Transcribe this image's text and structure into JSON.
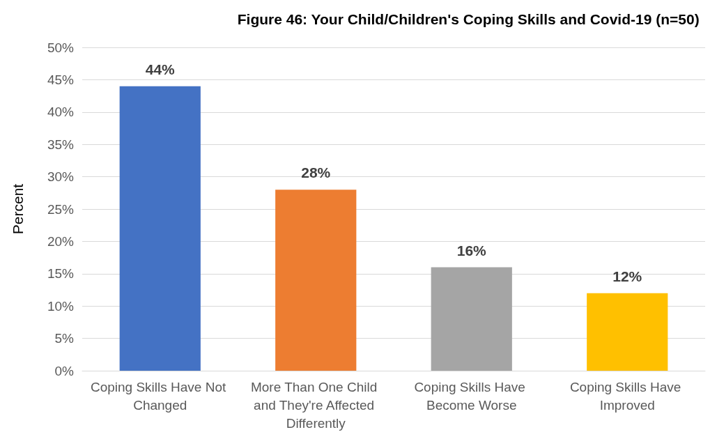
{
  "chart_data": {
    "type": "bar",
    "title": "Figure 46: Your Child/Children's Coping Skills and Covid-19 (n=50)",
    "ylabel": "Percent",
    "categories": [
      "Coping Skills Have Not Changed",
      "More Than One Child and They're Affected Differently",
      "Coping Skills Have Become Worse",
      "Coping Skills Have Improved"
    ],
    "values": [
      44,
      28,
      16,
      12
    ],
    "colors": [
      "#4472c4",
      "#ed7d31",
      "#a5a5a5",
      "#ffc000"
    ],
    "value_labels": [
      "44%",
      "28%",
      "16%",
      "12%"
    ],
    "ylim": [
      0,
      50
    ],
    "yticks": [
      {
        "value": 0,
        "label": "0%"
      },
      {
        "value": 5,
        "label": "5%"
      },
      {
        "value": 10,
        "label": "10%"
      },
      {
        "value": 15,
        "label": "15%"
      },
      {
        "value": 20,
        "label": "20%"
      },
      {
        "value": 25,
        "label": "25%"
      },
      {
        "value": 30,
        "label": "30%"
      },
      {
        "value": 35,
        "label": "35%"
      },
      {
        "value": 40,
        "label": "40%"
      },
      {
        "value": 45,
        "label": "45%"
      },
      {
        "value": 50,
        "label": "50%"
      }
    ],
    "grid": "y"
  }
}
